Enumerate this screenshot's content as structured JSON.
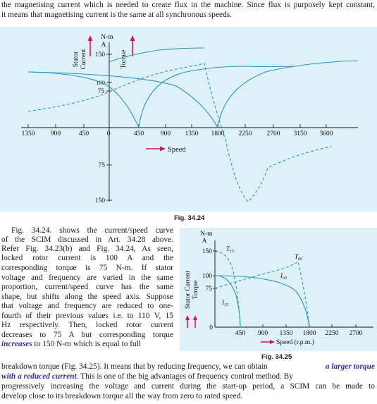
{
  "page": {
    "intro": [
      "the magnetising current which is needed to create flux in the machine.  Since flux is purposely kept constant,",
      "it means that magnetising current is the same at all synchronous speeds."
    ],
    "left_paragraph": [
      "Fig. 34.24. shows the current/speed curve",
      "of the SCIM discussed in Art. 34.28 above.",
      "Refer Fig. 34.23(b) and Fig. 34.24, As seen,",
      "locked rotor current is 100 A and the",
      "corresponding torque is 75 N-m. If stator",
      "voltage and frequency are varied in the same",
      "proportion, current/speed curve has the same",
      "shape, but shifts along the speed axis. Suppose",
      "that voltage and frequency are reduced to one-",
      "fourth of their previous values i.e. to 110 V, 15",
      "Hz respectively. Then, locked rotor current",
      "decreases to 75 A but corresponding torque"
    ],
    "line_increases_pre": "",
    "line_increases_em": "increases",
    "line_increases_post": " to 150 N-m which is equal to full",
    "bottom_line1_pre": "breakdown torque (Fig. 34.25). It means that by reducing frequency, we can obtain ",
    "bottom_line1_em": "a larger torque",
    "bottom_line2_em": "with a reduced current",
    "bottom_line2_post": ". This is one of the big advantages of frequency control method. By",
    "bottom_line3": "progressively increasing the voltage and current during the start-up period, a SCIM can be made to",
    "bottom_line4": "develop close to its breakdown torque all the way from zero to rated speed."
  },
  "fig1": {
    "caption": "Fig. 34.24",
    "x_ticks": [
      "1350",
      "900",
      "450",
      "0",
      "450",
      "900",
      "1350",
      "1800",
      "2250",
      "2700",
      "3150",
      "3600"
    ],
    "y_ticks_top": [
      "150",
      "100",
      "75"
    ],
    "y_ticks_bottom": [
      "75",
      "150"
    ],
    "unit_nm": "N-m",
    "unit_a": "A",
    "stator_label": "Stator",
    "current_label": "Current",
    "torque_label": "Torque",
    "speed_label": "Speed"
  },
  "fig2": {
    "caption": "Fig. 34.25",
    "x_ticks": [
      "450",
      "900",
      "1350",
      "1800",
      "2250",
      "2700"
    ],
    "zero": "0",
    "y_ticks": [
      "150",
      "100",
      "75"
    ],
    "unit_nm": "N-m",
    "unit_a": "A",
    "ylabel_current": "Stator Current",
    "ylabel_torque": "Torque",
    "speed_label": "Speed (r.p.m.)",
    "curve_labels": {
      "t15": "T",
      "t15_sub": "15",
      "t60": "T",
      "t60_sub": "60",
      "i60": "I",
      "i60_sub": "60",
      "i15": "I",
      "i15_sub": "15"
    }
  },
  "colors": {
    "figure_bg": "#dff1f8",
    "curve": "#2b92c9",
    "arrow": "#e0114a",
    "emphasis": "#2a36a8"
  }
}
